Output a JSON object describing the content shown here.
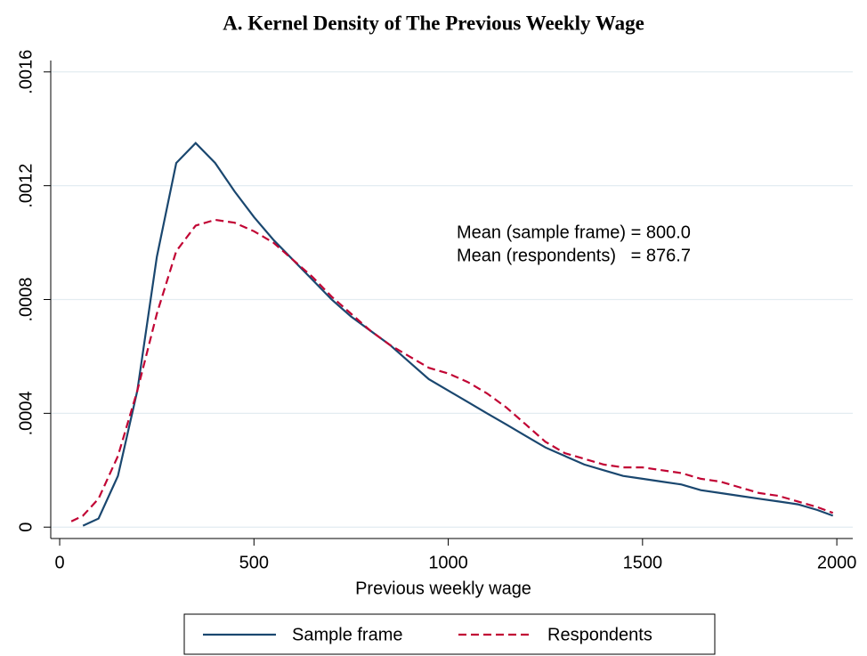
{
  "chart_data": {
    "type": "line",
    "title": "A. Kernel Density of The Previous Weekly Wage",
    "x_label": "Previous weekly wage",
    "annotations": [
      "Mean (sample frame) = 800.0",
      "Mean (respondents)   = 876.7"
    ],
    "xlim": [
      -23,
      2041
    ],
    "ylim": [
      -4e-05,
      0.00164
    ],
    "xticks": [
      0,
      500,
      1000,
      1500,
      2000
    ],
    "yticks": [
      0,
      {
        "value": 0.0004,
        "label": ".0004"
      },
      {
        "value": 0.0008,
        "label": ".0008"
      },
      {
        "value": 0.0012,
        "label": ".0012"
      },
      {
        "value": 0.0016,
        "label": ".0016"
      }
    ],
    "grid": true,
    "legend": "bottom",
    "series": [
      {
        "name": "Sample frame",
        "color": "#1a476f",
        "dash": false,
        "x": [
          60,
          100,
          150,
          200,
          250,
          300,
          350,
          400,
          450,
          500,
          550,
          600,
          650,
          700,
          750,
          800,
          850,
          900,
          950,
          1000,
          1050,
          1100,
          1150,
          1200,
          1250,
          1300,
          1350,
          1400,
          1450,
          1500,
          1550,
          1600,
          1650,
          1700,
          1750,
          1800,
          1850,
          1900,
          1950,
          1990
        ],
        "values": [
          5e-06,
          3e-05,
          0.00018,
          0.00048,
          0.00095,
          0.00128,
          0.00135,
          0.00128,
          0.00118,
          0.00109,
          0.00101,
          0.00094,
          0.00087,
          0.0008,
          0.00074,
          0.00069,
          0.00064,
          0.00058,
          0.00052,
          0.00048,
          0.00044,
          0.0004,
          0.00036,
          0.00032,
          0.00028,
          0.00025,
          0.00022,
          0.0002,
          0.00018,
          0.00017,
          0.00016,
          0.00015,
          0.00013,
          0.00012,
          0.00011,
          0.0001,
          9e-05,
          8e-05,
          6e-05,
          4e-05
        ]
      },
      {
        "name": "Respondents",
        "color": "#c10534",
        "dash": true,
        "x": [
          30,
          60,
          100,
          150,
          200,
          250,
          300,
          350,
          400,
          450,
          500,
          550,
          600,
          650,
          700,
          750,
          800,
          850,
          900,
          950,
          1000,
          1050,
          1100,
          1150,
          1200,
          1250,
          1300,
          1350,
          1400,
          1450,
          1500,
          1550,
          1600,
          1650,
          1700,
          1750,
          1800,
          1850,
          1900,
          1950,
          1990
        ],
        "values": [
          2e-05,
          4e-05,
          0.0001,
          0.00025,
          0.00048,
          0.00075,
          0.00097,
          0.00106,
          0.00108,
          0.00107,
          0.00104,
          0.001,
          0.00094,
          0.00088,
          0.00081,
          0.00075,
          0.00069,
          0.00064,
          0.0006,
          0.00056,
          0.00054,
          0.00051,
          0.00047,
          0.00042,
          0.00036,
          0.0003,
          0.00026,
          0.00024,
          0.00022,
          0.00021,
          0.00021,
          0.0002,
          0.00019,
          0.00017,
          0.00016,
          0.00014,
          0.00012,
          0.00011,
          9e-05,
          7e-05,
          5e-05
        ]
      }
    ]
  }
}
